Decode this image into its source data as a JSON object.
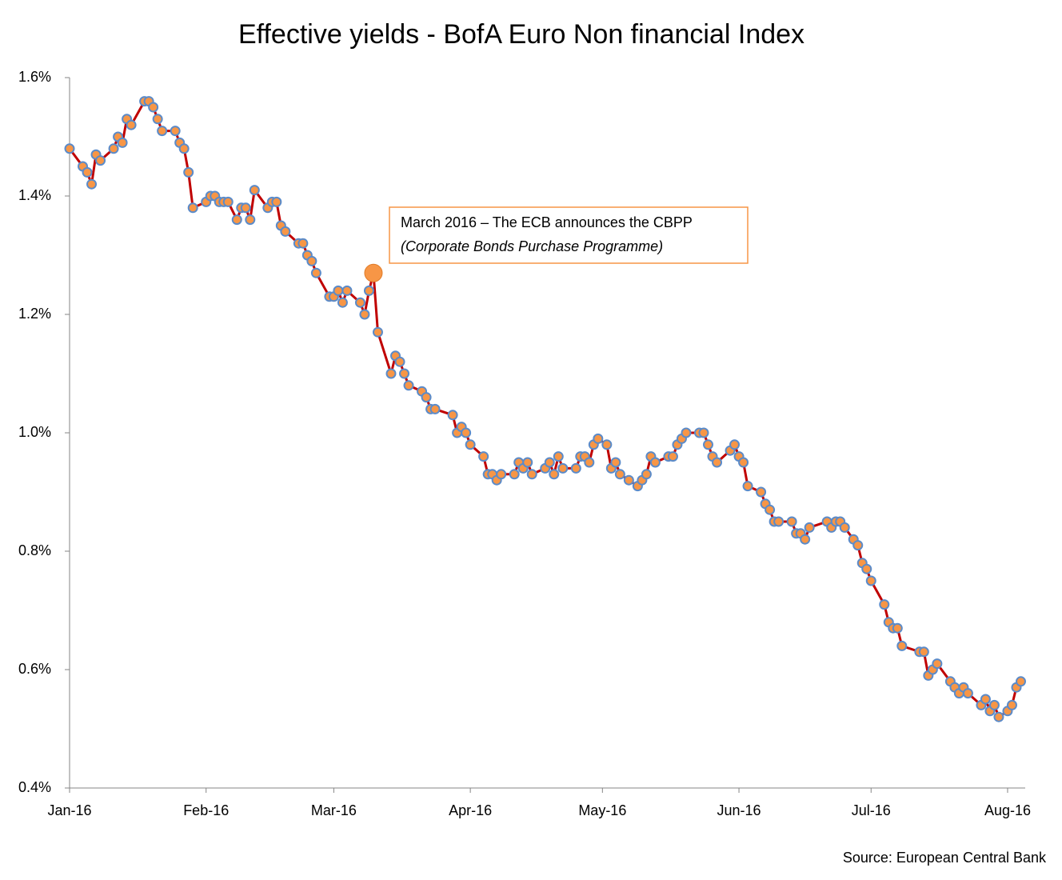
{
  "chart_data": {
    "type": "line",
    "title": "Effective yields - BofA Euro Non financial Index",
    "source": "Source: European Central Bank",
    "annotation": {
      "lines": [
        "March 2016 – The ECB announces the CBPP",
        "(Corporate Bonds Purchase Programme)"
      ],
      "highlight_index": 50,
      "color": "#f79646"
    },
    "x": [
      0,
      3,
      4,
      5,
      6,
      7,
      10,
      11,
      12,
      13,
      14,
      17,
      18,
      19,
      20,
      21,
      24,
      25,
      26,
      27,
      28,
      31,
      32,
      33,
      34,
      35,
      36,
      38,
      39,
      40,
      41,
      42,
      45,
      46,
      47,
      48,
      49,
      52,
      53,
      54,
      55,
      56,
      59,
      60,
      61,
      62,
      63,
      66,
      67,
      68,
      69,
      70,
      73,
      74,
      75,
      76,
      77,
      80,
      81,
      82,
      83,
      87,
      88,
      89,
      90,
      91,
      94,
      95,
      96,
      97,
      98,
      101,
      102,
      103,
      104,
      105,
      108,
      109,
      110,
      111,
      112,
      115,
      116,
      117,
      118,
      119,
      120,
      122,
      123,
      124,
      125,
      127,
      129,
      130,
      131,
      132,
      133,
      136,
      137,
      138,
      139,
      140,
      143,
      144,
      145,
      146,
      147,
      150,
      151,
      152,
      153,
      154,
      157,
      158,
      159,
      160,
      161,
      164,
      165,
      166,
      167,
      168,
      172,
      173,
      174,
      175,
      176,
      178,
      179,
      180,
      181,
      182,
      185,
      186,
      187,
      188,
      189,
      193,
      194,
      195,
      196,
      197,
      200,
      201,
      202,
      203,
      204,
      207,
      208,
      209,
      210,
      211,
      213,
      214,
      215,
      216
    ],
    "series": [
      {
        "name": "Effective yield",
        "color": "#c00000",
        "marker_fill": "#f79646",
        "marker_stroke": "#5b8bc9",
        "values": [
          1.48,
          1.45,
          1.44,
          1.42,
          1.47,
          1.46,
          1.48,
          1.5,
          1.49,
          1.53,
          1.52,
          1.56,
          1.56,
          1.55,
          1.53,
          1.51,
          1.51,
          1.49,
          1.48,
          1.44,
          1.38,
          1.39,
          1.4,
          1.4,
          1.39,
          1.39,
          1.39,
          1.36,
          1.38,
          1.38,
          1.36,
          1.41,
          1.38,
          1.39,
          1.39,
          1.35,
          1.34,
          1.32,
          1.32,
          1.3,
          1.29,
          1.27,
          1.23,
          1.23,
          1.24,
          1.22,
          1.24,
          1.22,
          1.2,
          1.24,
          1.27,
          1.17,
          1.1,
          1.13,
          1.12,
          1.1,
          1.08,
          1.07,
          1.06,
          1.04,
          1.04,
          1.03,
          1.0,
          1.01,
          1.0,
          0.98,
          0.96,
          0.93,
          0.93,
          0.92,
          0.93,
          0.93,
          0.95,
          0.94,
          0.95,
          0.93,
          0.94,
          0.95,
          0.93,
          0.96,
          0.94,
          0.94,
          0.96,
          0.96,
          0.95,
          0.98,
          0.99,
          0.98,
          0.94,
          0.95,
          0.93,
          0.92,
          0.91,
          0.92,
          0.93,
          0.96,
          0.95,
          0.96,
          0.96,
          0.98,
          0.99,
          1.0,
          1.0,
          1.0,
          0.98,
          0.96,
          0.95,
          0.97,
          0.98,
          0.96,
          0.95,
          0.91,
          0.9,
          0.88,
          0.87,
          0.85,
          0.85,
          0.85,
          0.83,
          0.83,
          0.82,
          0.84,
          0.85,
          0.84,
          0.85,
          0.85,
          0.84,
          0.82,
          0.81,
          0.78,
          0.77,
          0.75,
          0.71,
          0.68,
          0.67,
          0.67,
          0.64,
          0.63,
          0.63,
          0.59,
          0.6,
          0.61,
          0.58,
          0.57,
          0.56,
          0.57,
          0.56,
          0.54,
          0.55,
          0.53,
          0.54,
          0.52,
          0.53,
          0.54,
          0.57,
          0.58
        ]
      }
    ],
    "xlim": [
      0,
      217
    ],
    "xticks": [
      {
        "value": 0,
        "label": "Jan-16"
      },
      {
        "value": 31,
        "label": "Feb-16"
      },
      {
        "value": 60,
        "label": "Mar-16"
      },
      {
        "value": 91,
        "label": "Apr-16"
      },
      {
        "value": 121,
        "label": "May-16"
      },
      {
        "value": 152,
        "label": "Jun-16"
      },
      {
        "value": 182,
        "label": "Jul-16"
      },
      {
        "value": 213,
        "label": "Aug-16"
      }
    ],
    "ylim": [
      0.4,
      1.6
    ],
    "yticks": [
      {
        "value": 0.4,
        "label": "0.4%"
      },
      {
        "value": 0.6,
        "label": "0.6%"
      },
      {
        "value": 0.8,
        "label": "0.8%"
      },
      {
        "value": 1.0,
        "label": "1.0%"
      },
      {
        "value": 1.2,
        "label": "1.2%"
      },
      {
        "value": 1.4,
        "label": "1.4%"
      },
      {
        "value": 1.6,
        "label": "1.6%"
      }
    ],
    "grid": false
  }
}
